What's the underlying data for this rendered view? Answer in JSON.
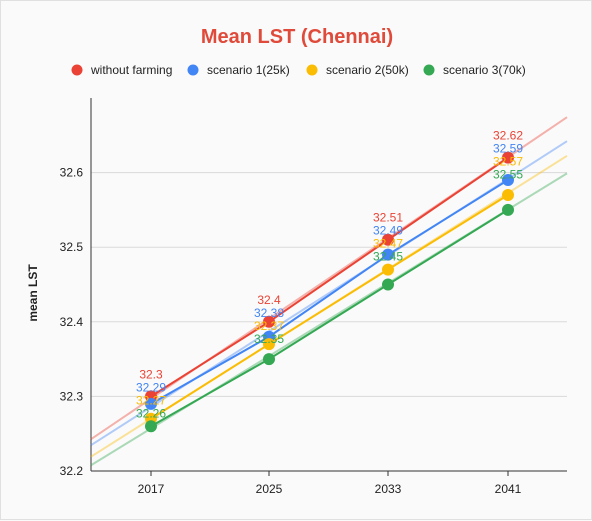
{
  "chart_data": {
    "type": "line",
    "title": "Mean LST (Chennai)",
    "ylabel": "mean LST",
    "xlabel": "",
    "categories": [
      "2017",
      "2025",
      "2033",
      "2041"
    ],
    "ylim": [
      32.2,
      32.7
    ],
    "yticks": [
      "32.2",
      "32.3",
      "32.4",
      "32.5",
      "32.6"
    ],
    "grid": true,
    "legend_position": "top",
    "trendlines": true,
    "series": [
      {
        "name": "without farming",
        "color": "#ea4335",
        "values": [
          32.3,
          32.4,
          32.51,
          32.62
        ],
        "labels": [
          "32.3",
          "32.4",
          "32.51",
          "32.62"
        ]
      },
      {
        "name": "scenario 1(25k)",
        "color": "#4285f4",
        "values": [
          32.29,
          32.38,
          32.49,
          32.59
        ],
        "labels": [
          "32.29",
          "32.38",
          "32.49",
          "32.59"
        ]
      },
      {
        "name": "scenario 2(50k)",
        "color": "#fbbc04",
        "values": [
          32.27,
          32.37,
          32.47,
          32.57
        ],
        "labels": [
          "32.27",
          "32.37",
          "32.47",
          "32.57"
        ]
      },
      {
        "name": "scenario 3(70k)",
        "color": "#34a853",
        "values": [
          32.26,
          32.35,
          32.45,
          32.55
        ],
        "labels": [
          "32.26",
          "32.35",
          "32.45",
          "32.55"
        ]
      }
    ]
  }
}
